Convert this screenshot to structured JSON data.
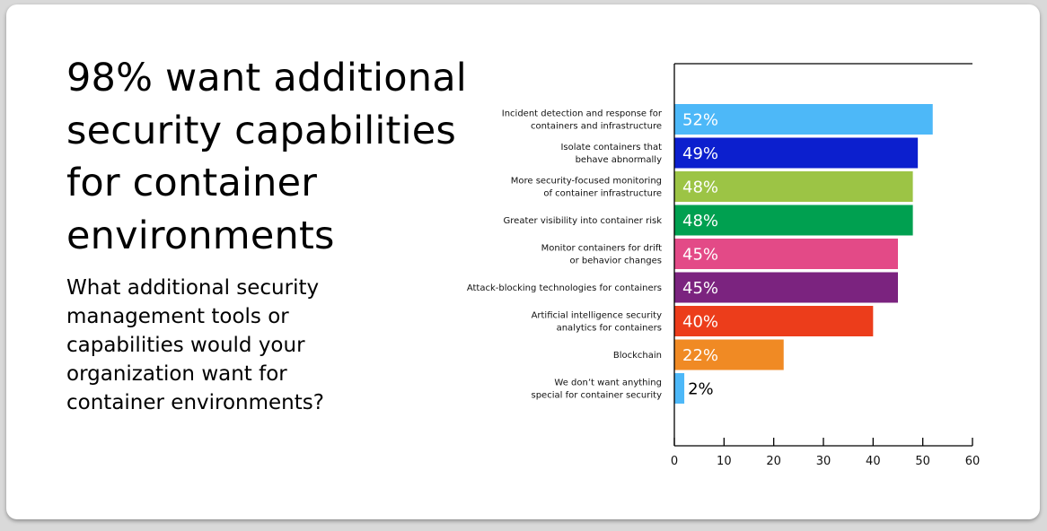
{
  "title": "98% want additional security capabilities for container environments",
  "subtitle": "What additional security management tools or capabilities would your organization want for container environments?",
  "chart_data": {
    "type": "bar",
    "orientation": "horizontal",
    "categories": [
      [
        "Incident detection and response for",
        "containers and infrastructure"
      ],
      [
        "Isolate containers that",
        "behave abnormally"
      ],
      [
        "More security-focused monitoring",
        "of container infrastructure"
      ],
      [
        "Greater visibility into container risk"
      ],
      [
        "Monitor containers for drift",
        "or behavior changes"
      ],
      [
        "Attack-blocking technologies for containers"
      ],
      [
        "Artificial intelligence security",
        "analytics for containers"
      ],
      [
        "Blockchain"
      ],
      [
        "We don’t want anything",
        "special for container security"
      ]
    ],
    "values": [
      52,
      49,
      48,
      48,
      45,
      45,
      40,
      22,
      2
    ],
    "value_labels": [
      "52%",
      "49%",
      "48%",
      "48%",
      "45%",
      "45%",
      "40%",
      "22%",
      "2%"
    ],
    "colors": [
      "#4db8f8",
      "#0c1fce",
      "#9cc445",
      "#00a050",
      "#e34a87",
      "#7b237f",
      "#ec3d1b",
      "#f08a24",
      "#4db8f8"
    ],
    "value_label_colors": [
      "#ffffff",
      "#ffffff",
      "#ffffff",
      "#ffffff",
      "#ffffff",
      "#ffffff",
      "#ffffff",
      "#ffffff",
      "#000000"
    ],
    "xlim": [
      0,
      60
    ],
    "xticks": [
      "0",
      "10",
      "20",
      "30",
      "40",
      "50",
      "60"
    ],
    "xlabel": "",
    "ylabel": "",
    "grid": false
  }
}
